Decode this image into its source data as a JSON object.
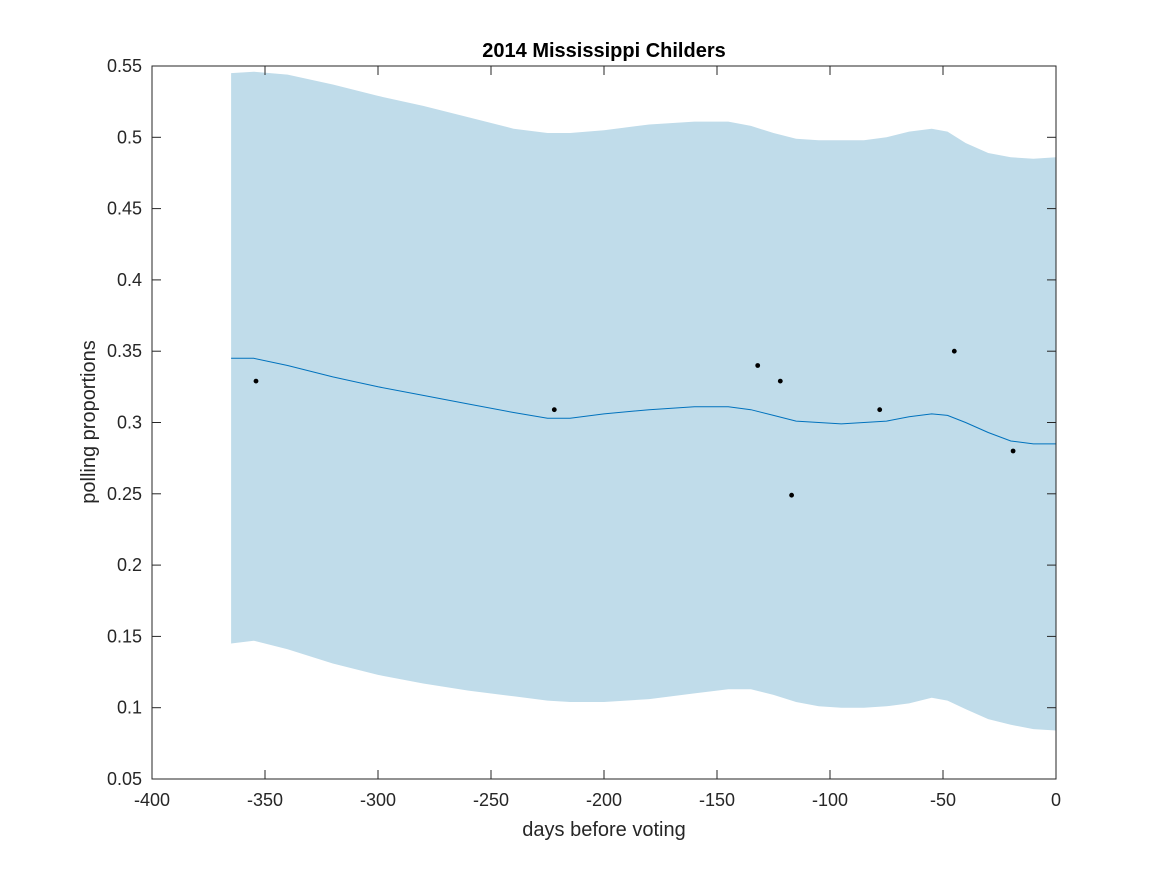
{
  "chart_data": {
    "type": "line",
    "title": "2014 Mississippi Childers",
    "xlabel": "days before voting",
    "ylabel": "polling proportions",
    "xlim": [
      -400,
      0
    ],
    "ylim": [
      0.05,
      0.55
    ],
    "x_ticks": [
      -400,
      -350,
      -300,
      -250,
      -200,
      -150,
      -100,
      -50,
      0
    ],
    "y_ticks": [
      0.05,
      0.1,
      0.15,
      0.2,
      0.25,
      0.3,
      0.35,
      0.4,
      0.45,
      0.5,
      0.55
    ],
    "x_tick_labels": [
      "-400",
      "-350",
      "-300",
      "-250",
      "-200",
      "-150",
      "-100",
      "-50",
      "0"
    ],
    "y_tick_labels": [
      "0.05",
      "0.1",
      "0.15",
      "0.2",
      "0.25",
      "0.3",
      "0.35",
      "0.4",
      "0.45",
      "0.5",
      "0.55"
    ],
    "grid": false,
    "colors": {
      "band": "#c0dcea",
      "line": "#0072bd",
      "points": "#000000",
      "axes": "#262626"
    },
    "series": [
      {
        "type": "area-band",
        "x": [
          -365,
          -355,
          -340,
          -320,
          -300,
          -280,
          -260,
          -240,
          -225,
          -215,
          -200,
          -180,
          -160,
          -145,
          -135,
          -125,
          -115,
          -105,
          -95,
          -85,
          -75,
          -65,
          -55,
          -48,
          -40,
          -30,
          -20,
          -10,
          0
        ],
        "lower": [
          0.145,
          0.147,
          0.141,
          0.131,
          0.123,
          0.117,
          0.112,
          0.108,
          0.105,
          0.104,
          0.104,
          0.106,
          0.11,
          0.113,
          0.113,
          0.109,
          0.104,
          0.101,
          0.1,
          0.1,
          0.101,
          0.103,
          0.107,
          0.105,
          0.099,
          0.092,
          0.088,
          0.085,
          0.084
        ],
        "upper": [
          0.545,
          0.546,
          0.544,
          0.537,
          0.529,
          0.522,
          0.514,
          0.506,
          0.503,
          0.503,
          0.505,
          0.509,
          0.511,
          0.511,
          0.508,
          0.503,
          0.499,
          0.498,
          0.498,
          0.498,
          0.5,
          0.504,
          0.506,
          0.504,
          0.496,
          0.489,
          0.486,
          0.485,
          0.486
        ]
      },
      {
        "type": "line",
        "x": [
          -365,
          -355,
          -340,
          -320,
          -300,
          -280,
          -260,
          -240,
          -225,
          -215,
          -200,
          -180,
          -160,
          -145,
          -135,
          -125,
          -115,
          -105,
          -95,
          -85,
          -75,
          -65,
          -55,
          -48,
          -40,
          -30,
          -20,
          -10,
          0
        ],
        "values": [
          0.345,
          0.345,
          0.34,
          0.332,
          0.325,
          0.319,
          0.313,
          0.307,
          0.303,
          0.303,
          0.306,
          0.309,
          0.311,
          0.311,
          0.309,
          0.305,
          0.301,
          0.3,
          0.299,
          0.3,
          0.301,
          0.304,
          0.306,
          0.305,
          0.3,
          0.293,
          0.287,
          0.285,
          0.285
        ]
      },
      {
        "type": "scatter",
        "x": [
          -354,
          -222,
          -132,
          -122,
          -117,
          -78,
          -45,
          -19
        ],
        "values": [
          0.329,
          0.309,
          0.34,
          0.329,
          0.249,
          0.309,
          0.35,
          0.28
        ]
      }
    ]
  }
}
